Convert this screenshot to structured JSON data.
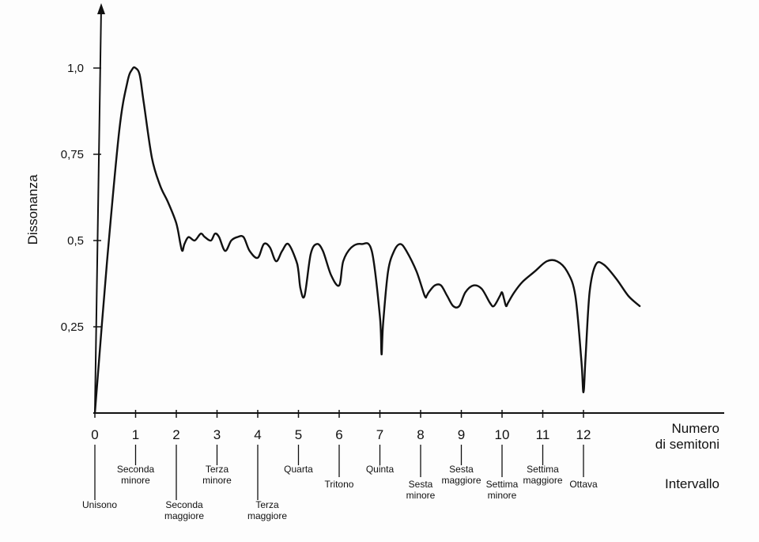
{
  "chart_data": {
    "type": "line",
    "ylabel": "Dissonanza",
    "xlabel": "Numero\ndi semitoni",
    "intervals_title": "Intervallo",
    "xlim": [
      0,
      13.8
    ],
    "ylim": [
      0,
      1.1
    ],
    "y_ticks": [
      {
        "value": 0.25,
        "label": "0,25"
      },
      {
        "value": 0.5,
        "label": "0,5"
      },
      {
        "value": 0.75,
        "label": "0,75"
      },
      {
        "value": 1.0,
        "label": "1,0"
      }
    ],
    "x_ticks": [
      0,
      1,
      2,
      3,
      4,
      5,
      6,
      7,
      8,
      9,
      10,
      11,
      12
    ],
    "intervals": [
      {
        "semitone": 0,
        "label": "Unisono",
        "level": "low"
      },
      {
        "semitone": 1,
        "label": "Seconda\nminore",
        "level": "high"
      },
      {
        "semitone": 2,
        "label": "Seconda\nmaggiore",
        "level": "low"
      },
      {
        "semitone": 3,
        "label": "Terza\nminore",
        "level": "high"
      },
      {
        "semitone": 4,
        "label": "Terza\nmaggiore",
        "level": "low"
      },
      {
        "semitone": 5,
        "label": "Quarta",
        "level": "high"
      },
      {
        "semitone": 6,
        "label": "Tritono",
        "level": "mid"
      },
      {
        "semitone": 7,
        "label": "Quinta",
        "level": "high"
      },
      {
        "semitone": 8,
        "label": "Sesta\nminore",
        "level": "mid"
      },
      {
        "semitone": 9,
        "label": "Sesta\nmaggiore",
        "level": "high"
      },
      {
        "semitone": 10,
        "label": "Settima\nminore",
        "level": "mid"
      },
      {
        "semitone": 11,
        "label": "Settima\nmaggiore",
        "level": "high"
      },
      {
        "semitone": 12,
        "label": "Ottava",
        "level": "mid"
      }
    ],
    "series": [
      {
        "color": "#111111",
        "x": [
          0,
          0.3,
          0.6,
          0.8,
          0.92,
          1.0,
          1.1,
          1.2,
          1.4,
          1.6,
          1.8,
          2.0,
          2.1,
          2.15,
          2.2,
          2.3,
          2.45,
          2.6,
          2.7,
          2.85,
          2.95,
          3.05,
          3.2,
          3.35,
          3.5,
          3.65,
          3.8,
          4.0,
          4.15,
          4.3,
          4.45,
          4.6,
          4.75,
          4.95,
          5.0,
          5.05,
          5.15,
          5.3,
          5.45,
          5.6,
          5.8,
          6.0,
          6.1,
          6.3,
          6.55,
          6.8,
          7.0,
          7.04,
          7.08,
          7.2,
          7.35,
          7.5,
          7.65,
          7.9,
          8.1,
          8.15,
          8.2,
          8.35,
          8.5,
          8.65,
          8.8,
          8.95,
          9.1,
          9.3,
          9.5,
          9.7,
          9.8,
          9.95,
          10.0,
          10.05,
          10.1,
          10.15,
          10.3,
          10.5,
          10.8,
          11.1,
          11.35,
          11.6,
          11.8,
          11.95,
          12.0,
          12.05,
          12.15,
          12.3,
          12.5,
          12.8,
          13.1,
          13.38
        ],
        "y": [
          0.0,
          0.44,
          0.82,
          0.96,
          0.997,
          1.0,
          0.98,
          0.9,
          0.74,
          0.66,
          0.61,
          0.55,
          0.49,
          0.47,
          0.49,
          0.51,
          0.5,
          0.52,
          0.51,
          0.5,
          0.52,
          0.51,
          0.47,
          0.5,
          0.51,
          0.51,
          0.47,
          0.45,
          0.49,
          0.48,
          0.44,
          0.47,
          0.49,
          0.44,
          0.41,
          0.36,
          0.34,
          0.46,
          0.49,
          0.47,
          0.4,
          0.37,
          0.44,
          0.48,
          0.49,
          0.47,
          0.28,
          0.17,
          0.26,
          0.41,
          0.47,
          0.49,
          0.47,
          0.41,
          0.34,
          0.34,
          0.35,
          0.37,
          0.37,
          0.34,
          0.31,
          0.31,
          0.35,
          0.37,
          0.36,
          0.32,
          0.31,
          0.34,
          0.35,
          0.33,
          0.31,
          0.32,
          0.35,
          0.38,
          0.41,
          0.44,
          0.44,
          0.41,
          0.34,
          0.15,
          0.06,
          0.16,
          0.35,
          0.43,
          0.43,
          0.39,
          0.34,
          0.31
        ]
      }
    ]
  }
}
